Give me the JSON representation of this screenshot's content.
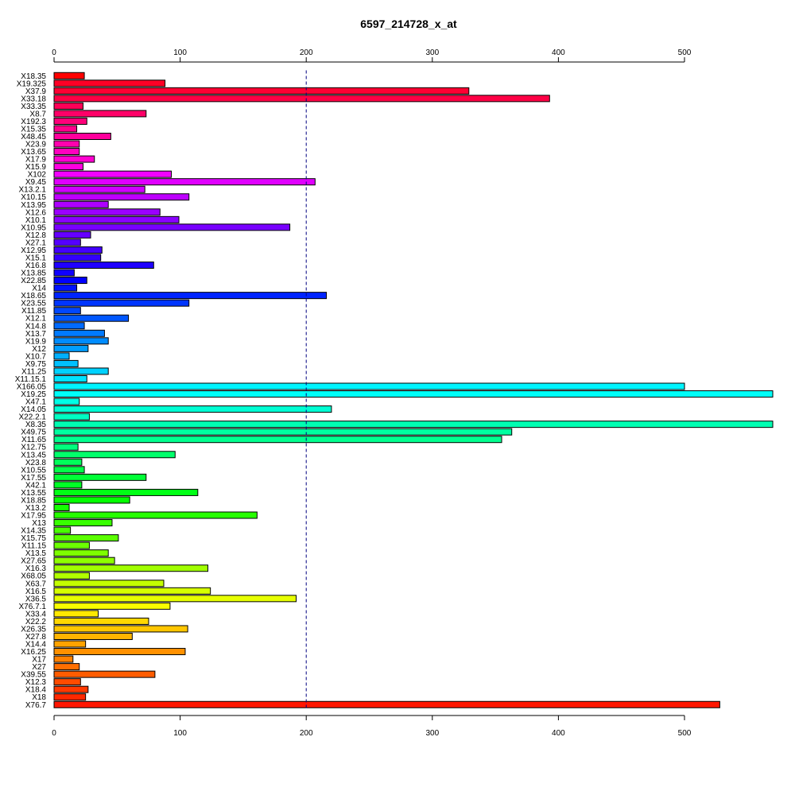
{
  "chart_data": {
    "type": "bar",
    "orientation": "horizontal",
    "title": "6597_214728_x_at",
    "xlabel": "",
    "ylabel": "",
    "xlim": [
      0,
      570
    ],
    "xticks": [
      0,
      100,
      200,
      300,
      400,
      500
    ],
    "reference_line": {
      "x": 200,
      "style": "dashed",
      "color": "#000080"
    },
    "categories": [
      "X18.35",
      "X19.325",
      "X37.9",
      "X33.18",
      "X33.35",
      "X8.7",
      "X192.3",
      "X15.35",
      "X48.45",
      "X23.9",
      "X13.65",
      "X17.9",
      "X15.9",
      "X102",
      "X9.45",
      "X13.2.1",
      "X10.15",
      "X13.95",
      "X12.6",
      "X10.1",
      "X10.95",
      "X12.8",
      "X27.1",
      "X12.95",
      "X15.1",
      "X16.8",
      "X13.85",
      "X22.85",
      "X14",
      "X18.65",
      "X23.55",
      "X11.85",
      "X12.1",
      "X14.8",
      "X13.7",
      "X19.9",
      "X12",
      "X10.7",
      "X9.75",
      "X11.25",
      "X11.15.1",
      "X166.05",
      "X19.25",
      "X47.1",
      "X14.05",
      "X22.2.1",
      "X8.35",
      "X49.75",
      "X11.65",
      "X12.75",
      "X13.45",
      "X23.8",
      "X10.55",
      "X17.55",
      "X42.1",
      "X13.55",
      "X18.85",
      "X13.2",
      "X17.95",
      "X13",
      "X14.35",
      "X15.75",
      "X11.15",
      "X13.5",
      "X27.65",
      "X16.3",
      "X68.05",
      "X63.7",
      "X16.5",
      "X36.5",
      "X76.7.1",
      "X33.4",
      "X22.2",
      "X26.35",
      "X27.8",
      "X14.4",
      "X16.25",
      "X17",
      "X27",
      "X39.55",
      "X12.3",
      "X18.4",
      "X18",
      "X76.7"
    ],
    "values": [
      24,
      88,
      329,
      393,
      23,
      73,
      26,
      18,
      45,
      20,
      20,
      32,
      23,
      93,
      207,
      72,
      107,
      43,
      84,
      99,
      187,
      29,
      21,
      38,
      37,
      79,
      16,
      26,
      18,
      216,
      107,
      21,
      59,
      24,
      40,
      43,
      27,
      12,
      19,
      43,
      26,
      500,
      570,
      20,
      220,
      28,
      570,
      363,
      355,
      19,
      96,
      22,
      24,
      73,
      22,
      114,
      60,
      12,
      161,
      46,
      13,
      51,
      28,
      43,
      48,
      122,
      28,
      87,
      124,
      192,
      92,
      35,
      75,
      106,
      62,
      25,
      104,
      15,
      20,
      80,
      21,
      27,
      25,
      528
    ],
    "colors": [
      "#ff0000",
      "#ff0026",
      "#ff0033",
      "#ff0045",
      "#ff0057",
      "#ff0068",
      "#ff007a",
      "#ff008a",
      "#ff009c",
      "#ff00ae",
      "#ff00bf",
      "#ff00d0",
      "#ff00e0",
      "#f200ff",
      "#e000ff",
      "#cf00ff",
      "#bd00ff",
      "#ad00ff",
      "#9b00ff",
      "#8a00ff",
      "#7800ff",
      "#6600ff",
      "#5500ff",
      "#4400ff",
      "#3300ff",
      "#2000ff",
      "#0f00ff",
      "#0000ff",
      "#0012ff",
      "#0024ff",
      "#0035ff",
      "#0047ff",
      "#0057ff",
      "#006aff",
      "#007aff",
      "#008cff",
      "#009eff",
      "#00afff",
      "#00c0ff",
      "#00d2ff",
      "#00e3ff",
      "#00f5ff",
      "#00fff8",
      "#00ffe6",
      "#00ffd4",
      "#00ffc3",
      "#00ffb2",
      "#00ffa0",
      "#00ff8f",
      "#00ff7d",
      "#00ff6b",
      "#00ff5a",
      "#00ff49",
      "#00ff37",
      "#00ff26",
      "#00ff15",
      "#03ff00",
      "#14ff00",
      "#26ff00",
      "#38ff00",
      "#49ff00",
      "#5bff00",
      "#6cff00",
      "#7eff00",
      "#8fff00",
      "#a1ff00",
      "#b2ff00",
      "#c4ff00",
      "#d6ff00",
      "#e7ff00",
      "#f9ff00",
      "#ffe900",
      "#ffd700",
      "#ffc600",
      "#ffb400",
      "#ffa300",
      "#ff9100",
      "#ff8000",
      "#ff6e00",
      "#ff5c00",
      "#ff4b00",
      "#ff3900",
      "#ff2800",
      "#ff1600"
    ],
    "grid": false,
    "legend": false
  }
}
